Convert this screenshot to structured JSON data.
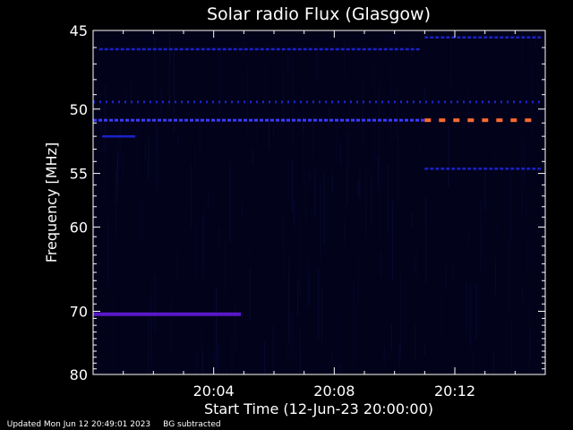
{
  "chart_data": {
    "type": "heatmap",
    "title": "Solar radio Flux (Glasgow)",
    "xlabel": "Start Time (12-Jun-23 20:00:00)",
    "ylabel": "Frequency [MHz]",
    "x_unit": "minutes after 20:00:00",
    "xlim": [
      0,
      15
    ],
    "ylim": [
      80,
      45
    ],
    "y_scale": "reciprocal",
    "x_ticks": [
      {
        "value": 4,
        "label": "20:04"
      },
      {
        "value": 8,
        "label": "20:08"
      },
      {
        "value": 12,
        "label": "20:12"
      }
    ],
    "y_ticks": [
      {
        "value": 45,
        "label": "45"
      },
      {
        "value": 50,
        "label": "50"
      },
      {
        "value": 55,
        "label": "55"
      },
      {
        "value": 60,
        "label": "60"
      },
      {
        "value": 70,
        "label": "70"
      },
      {
        "value": 80,
        "label": "80"
      }
    ],
    "colors": {
      "background": "#000000",
      "axes": "#ffffff",
      "plot_background": "#02021a",
      "blue_band": "#1a22c8",
      "bright_blue": "#3a3aff",
      "purple_band": "#5a18c8",
      "orange_dash": "#ff6a30"
    },
    "bands": [
      {
        "freq": 46.1,
        "x_start": 0.2,
        "x_end": 11.0,
        "style": "dashed",
        "intensity": "low",
        "color": "blue_band"
      },
      {
        "freq": 45.4,
        "x_start": 11.0,
        "x_end": 15.0,
        "style": "dashed",
        "intensity": "low",
        "color": "blue_band"
      },
      {
        "freq": 49.5,
        "x_start": 0.0,
        "x_end": 15.0,
        "style": "dotted",
        "intensity": "medium",
        "color": "blue_band"
      },
      {
        "freq": 50.8,
        "x_start": 0.0,
        "x_end": 11.0,
        "style": "dashed",
        "intensity": "medium",
        "color": "bright_blue"
      },
      {
        "freq": 50.8,
        "x_start": 11.0,
        "x_end": 15.0,
        "style": "dashed",
        "intensity": "high",
        "color": "orange_dash"
      },
      {
        "freq": 52.0,
        "x_start": 0.3,
        "x_end": 1.4,
        "style": "solid",
        "intensity": "low",
        "color": "blue_band"
      },
      {
        "freq": 54.6,
        "x_start": 11.0,
        "x_end": 15.0,
        "style": "dashed",
        "intensity": "low",
        "color": "blue_band"
      },
      {
        "freq": 70.4,
        "x_start": 0.0,
        "x_end": 4.9,
        "style": "solid",
        "intensity": "high",
        "color": "purple_band"
      }
    ],
    "grid": false
  },
  "footer": {
    "updated": "Updated Mon Jun 12 20:49:01 2023",
    "note": "BG subtracted"
  }
}
